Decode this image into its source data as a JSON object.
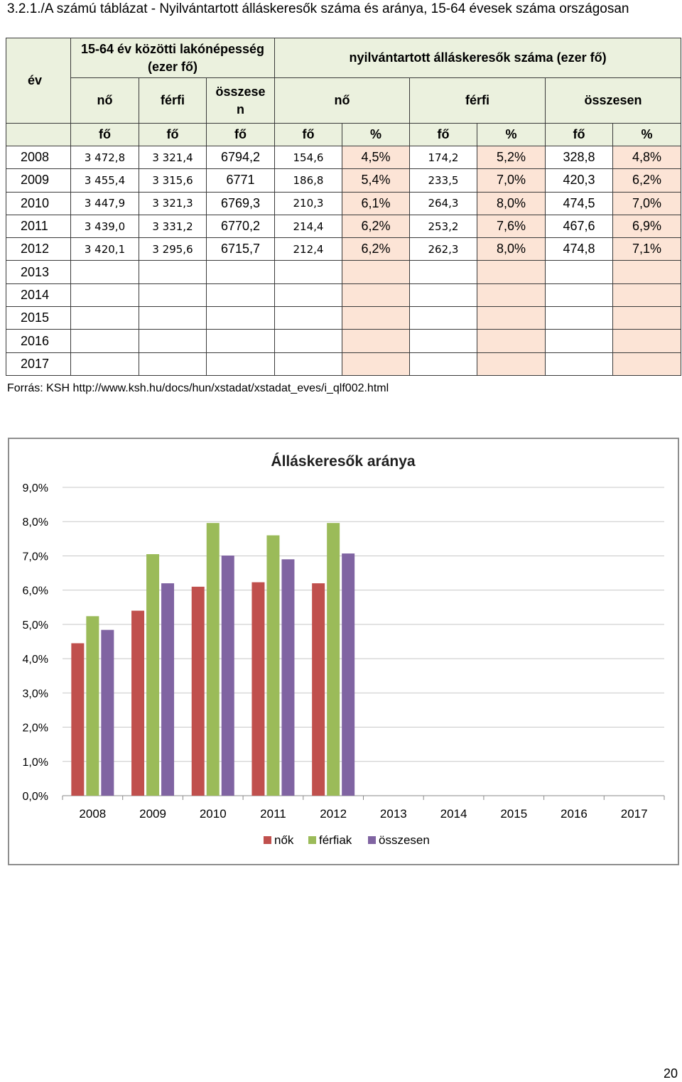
{
  "title": "3.2.1./A számú táblázat - Nyilvántartott álláskeresők száma és aránya, 15-64 évesek száma országosan",
  "table": {
    "col_year": "év",
    "group_population": "15-64 év közötti lakónépesség (ezer fő)",
    "group_registered": "nyilvántartott álláskeresők száma (ezer fő)",
    "sub_pop_no": "nő",
    "sub_pop_ferfi": "férfi",
    "sub_pop_osszesen": "összesen",
    "sub_reg_no": "nő",
    "sub_reg_ferfi": "férfi",
    "sub_reg_osszesen": "összesen",
    "units": [
      "fő",
      "fő",
      "fő",
      "fő",
      "%",
      "fő",
      "%",
      "fő",
      "%"
    ],
    "rows": [
      {
        "year": "2008",
        "pop_no": "3 472,8",
        "pop_ferfi": "3 321,4",
        "pop_total": "6794,2",
        "reg_no": "154,6",
        "reg_no_pct": "4,5%",
        "reg_ferfi": "174,2",
        "reg_ferfi_pct": "5,2%",
        "reg_total": "328,8",
        "reg_total_pct": "4,8%"
      },
      {
        "year": "2009",
        "pop_no": "3 455,4",
        "pop_ferfi": "3 315,6",
        "pop_total": "6771",
        "reg_no": "186,8",
        "reg_no_pct": "5,4%",
        "reg_ferfi": "233,5",
        "reg_ferfi_pct": "7,0%",
        "reg_total": "420,3",
        "reg_total_pct": "6,2%"
      },
      {
        "year": "2010",
        "pop_no": "3 447,9",
        "pop_ferfi": "3 321,3",
        "pop_total": "6769,3",
        "reg_no": "210,3",
        "reg_no_pct": "6,1%",
        "reg_ferfi": "264,3",
        "reg_ferfi_pct": "8,0%",
        "reg_total": "474,5",
        "reg_total_pct": "7,0%"
      },
      {
        "year": "2011",
        "pop_no": "3 439,0",
        "pop_ferfi": "3 331,2",
        "pop_total": "6770,2",
        "reg_no": "214,4",
        "reg_no_pct": "6,2%",
        "reg_ferfi": "253,2",
        "reg_ferfi_pct": "7,6%",
        "reg_total": "467,6",
        "reg_total_pct": "6,9%"
      },
      {
        "year": "2012",
        "pop_no": "3 420,1",
        "pop_ferfi": "3 295,6",
        "pop_total": "6715,7",
        "reg_no": "212,4",
        "reg_no_pct": "6,2%",
        "reg_ferfi": "262,3",
        "reg_ferfi_pct": "8,0%",
        "reg_total": "474,8",
        "reg_total_pct": "7,1%"
      },
      {
        "year": "2013",
        "pop_no": "",
        "pop_ferfi": "",
        "pop_total": "",
        "reg_no": "",
        "reg_no_pct": "",
        "reg_ferfi": "",
        "reg_ferfi_pct": "",
        "reg_total": "",
        "reg_total_pct": ""
      },
      {
        "year": "2014",
        "pop_no": "",
        "pop_ferfi": "",
        "pop_total": "",
        "reg_no": "",
        "reg_no_pct": "",
        "reg_ferfi": "",
        "reg_ferfi_pct": "",
        "reg_total": "",
        "reg_total_pct": ""
      },
      {
        "year": "2015",
        "pop_no": "",
        "pop_ferfi": "",
        "pop_total": "",
        "reg_no": "",
        "reg_no_pct": "",
        "reg_ferfi": "",
        "reg_ferfi_pct": "",
        "reg_total": "",
        "reg_total_pct": ""
      },
      {
        "year": "2016",
        "pop_no": "",
        "pop_ferfi": "",
        "pop_total": "",
        "reg_no": "",
        "reg_no_pct": "",
        "reg_ferfi": "",
        "reg_ferfi_pct": "",
        "reg_total": "",
        "reg_total_pct": ""
      },
      {
        "year": "2017",
        "pop_no": "",
        "pop_ferfi": "",
        "pop_total": "",
        "reg_no": "",
        "reg_no_pct": "",
        "reg_ferfi": "",
        "reg_ferfi_pct": "",
        "reg_total": "",
        "reg_total_pct": ""
      }
    ]
  },
  "source": "Forrás: KSH http://www.ksh.hu/docs/hun/xstadat/xstadat_eves/i_qlf002.html",
  "chart_data": {
    "type": "bar",
    "title": "Álláskeresők aránya",
    "categories": [
      "2008",
      "2009",
      "2010",
      "2011",
      "2012",
      "2013",
      "2014",
      "2015",
      "2016",
      "2017"
    ],
    "series": [
      {
        "name": "nők",
        "color": "#c0504d",
        "values": [
          4.45,
          5.4,
          6.1,
          6.23,
          6.2,
          null,
          null,
          null,
          null,
          null
        ]
      },
      {
        "name": "férfiak",
        "color": "#9bbb59",
        "values": [
          5.24,
          7.05,
          7.96,
          7.6,
          7.96,
          null,
          null,
          null,
          null,
          null
        ]
      },
      {
        "name": "összesen",
        "color": "#8064a2",
        "values": [
          4.84,
          6.2,
          7.01,
          6.9,
          7.07,
          null,
          null,
          null,
          null,
          null
        ]
      }
    ],
    "yticks": [
      "0,0%",
      "1,0%",
      "2,0%",
      "3,0%",
      "4,0%",
      "5,0%",
      "6,0%",
      "7,0%",
      "8,0%",
      "9,0%"
    ],
    "ylim": [
      0,
      9
    ],
    "grid": true,
    "legend_position": "bottom"
  },
  "page_number": "20"
}
